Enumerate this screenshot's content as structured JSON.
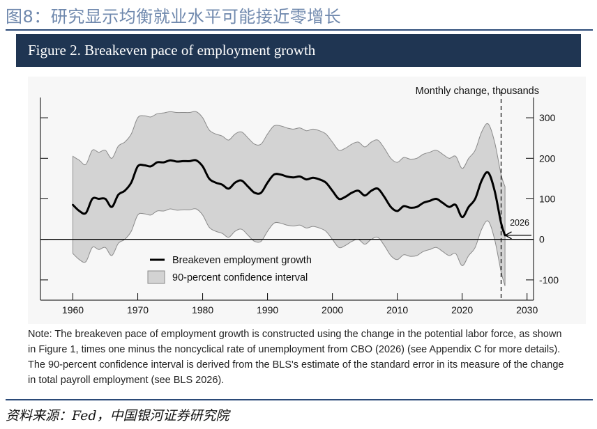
{
  "header": {
    "title": "图8：研究显示均衡就业水平可能接近零增长"
  },
  "figure": {
    "banner": "Figure 2. Breakeven pace of employment growth"
  },
  "chart_data": {
    "type": "area",
    "units_label": "Monthly change, thousands",
    "xlim": [
      1955,
      2031
    ],
    "ylim": [
      -150,
      350
    ],
    "x_ticks": [
      1960,
      1970,
      1980,
      1990,
      2000,
      2010,
      2020,
      2030
    ],
    "y_ticks": [
      300,
      200,
      100,
      0,
      -100
    ],
    "x_tick_labels": [
      "1960",
      "1970",
      "1980",
      "1990",
      "2000",
      "2010",
      "2020",
      "2030"
    ],
    "y_tick_labels": [
      "300",
      "200",
      "100",
      "0",
      "-100"
    ],
    "vline_x": 2026,
    "annotation": {
      "text": "2026",
      "x": 2026,
      "y": 10
    },
    "series": [
      {
        "name": "Breakeven employment growth",
        "x": [
          1960,
          1961,
          1962,
          1963,
          1964,
          1965,
          1966,
          1967,
          1968,
          1969,
          1970,
          1971,
          1972,
          1973,
          1974,
          1975,
          1976,
          1977,
          1978,
          1979,
          1980,
          1981,
          1982,
          1983,
          1984,
          1985,
          1986,
          1987,
          1988,
          1989,
          1990,
          1991,
          1992,
          1993,
          1994,
          1995,
          1996,
          1997,
          1998,
          1999,
          2000,
          2001,
          2002,
          2003,
          2004,
          2005,
          2006,
          2007,
          2008,
          2009,
          2010,
          2011,
          2012,
          2013,
          2014,
          2015,
          2016,
          2017,
          2018,
          2019,
          2020,
          2021,
          2022,
          2023,
          2024,
          2025,
          2026,
          2026.6
        ],
        "y": [
          85,
          70,
          65,
          100,
          100,
          100,
          80,
          110,
          120,
          140,
          180,
          183,
          180,
          190,
          190,
          195,
          192,
          193,
          193,
          195,
          180,
          150,
          140,
          135,
          125,
          140,
          145,
          130,
          115,
          115,
          140,
          160,
          160,
          155,
          153,
          155,
          148,
          152,
          148,
          140,
          120,
          100,
          105,
          115,
          120,
          108,
          120,
          125,
          105,
          80,
          70,
          82,
          78,
          80,
          90,
          95,
          100,
          90,
          80,
          85,
          55,
          80,
          100,
          145,
          165,
          120,
          40,
          10
        ]
      },
      {
        "name": "90-percent confidence interval",
        "x": [
          1960,
          1961,
          1962,
          1963,
          1964,
          1965,
          1966,
          1967,
          1968,
          1969,
          1970,
          1971,
          1972,
          1973,
          1974,
          1975,
          1976,
          1977,
          1978,
          1979,
          1980,
          1981,
          1982,
          1983,
          1984,
          1985,
          1986,
          1987,
          1988,
          1989,
          1990,
          1991,
          1992,
          1993,
          1994,
          1995,
          1996,
          1997,
          1998,
          1999,
          2000,
          2001,
          2002,
          2003,
          2004,
          2005,
          2006,
          2007,
          2008,
          2009,
          2010,
          2011,
          2012,
          2013,
          2014,
          2015,
          2016,
          2017,
          2018,
          2019,
          2020,
          2021,
          2022,
          2023,
          2024,
          2025,
          2026,
          2026.6
        ],
        "upper": [
          205,
          195,
          185,
          220,
          215,
          220,
          200,
          230,
          240,
          260,
          300,
          305,
          302,
          310,
          312,
          315,
          313,
          313,
          313,
          315,
          300,
          270,
          260,
          255,
          245,
          260,
          265,
          250,
          235,
          235,
          260,
          280,
          280,
          275,
          272,
          275,
          268,
          272,
          268,
          260,
          240,
          220,
          225,
          235,
          240,
          228,
          240,
          245,
          225,
          200,
          190,
          202,
          198,
          200,
          210,
          215,
          220,
          210,
          200,
          205,
          175,
          200,
          220,
          265,
          285,
          240,
          160,
          130
        ],
        "lower": [
          -35,
          -50,
          -55,
          -20,
          -25,
          -20,
          -40,
          -10,
          0,
          20,
          60,
          63,
          60,
          70,
          70,
          75,
          72,
          73,
          73,
          75,
          60,
          30,
          20,
          15,
          5,
          20,
          25,
          10,
          -5,
          -5,
          20,
          40,
          40,
          35,
          33,
          35,
          28,
          32,
          28,
          20,
          0,
          -20,
          -15,
          -5,
          0,
          -12,
          0,
          5,
          -15,
          -40,
          -50,
          -38,
          -42,
          -40,
          -30,
          -25,
          -20,
          -30,
          -40,
          -35,
          -65,
          -40,
          -20,
          25,
          45,
          0,
          -80,
          -115
        ]
      }
    ],
    "legend": {
      "placement": "bottom-left",
      "line_label": "Breakeven employment growth",
      "band_label": "90-percent confidence interval"
    }
  },
  "note": {
    "text": "Note: The breakeven pace of employment growth is constructed using the change in the potential labor force, as shown in Figure 1, times one minus the noncyclical rate of unemployment from CBO (2026) (see Appendix C for more details). The 90-percent confidence interval is derived from the BLS's estimate of the standard error in its measure of the change in total payroll employment (see BLS 2026)."
  },
  "source": {
    "text": "资料来源：Fed，中国银河证券研究院"
  },
  "colors": {
    "title": "#6f88ad",
    "rule": "#2b4a78",
    "banner_bg": "#1f3552",
    "band_fill": "#d3d3d3",
    "band_stroke": "#8a8a8a",
    "line": "#000000"
  }
}
